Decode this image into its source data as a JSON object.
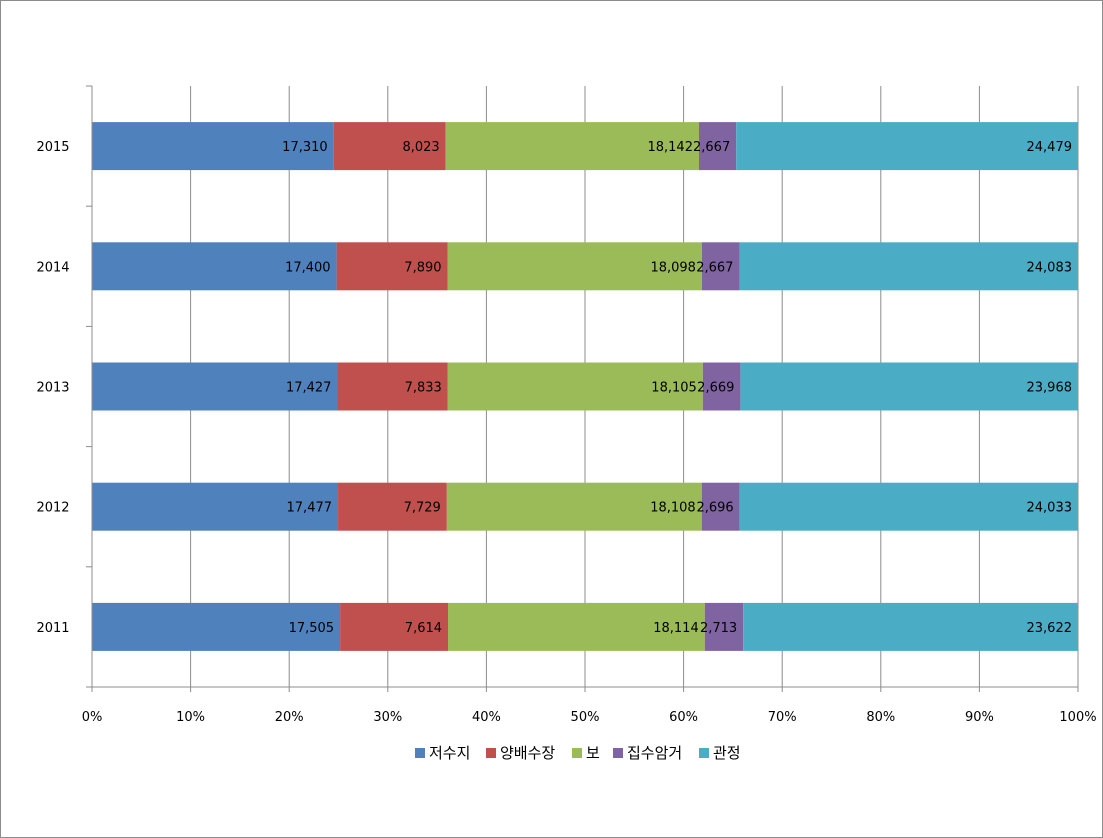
{
  "chart_data": {
    "type": "bar",
    "orientation": "horizontal",
    "stacked": "percent",
    "categories": [
      "2015",
      "2014",
      "2013",
      "2012",
      "2011"
    ],
    "series": [
      {
        "name": "저수지",
        "color": "#4f81bd",
        "values": [
          17310,
          17400,
          17427,
          17477,
          17505
        ],
        "labels": [
          "17,310",
          "17,400",
          "17,427",
          "17,477",
          "17,505"
        ]
      },
      {
        "name": "양배수장",
        "color": "#c0504d",
        "values": [
          8023,
          7890,
          7833,
          7729,
          7614
        ],
        "labels": [
          "8,023",
          "7,890",
          "7,833",
          "7,729",
          "7,614"
        ]
      },
      {
        "name": "보",
        "color": "#9bbb59",
        "values": [
          18142,
          18098,
          18105,
          18108,
          18114
        ],
        "labels": [
          "18,142",
          "18,098",
          "18,105",
          "18,108",
          "18,114"
        ]
      },
      {
        "name": "집수암거",
        "color": "#8064a2",
        "values": [
          2667,
          2667,
          2669,
          2696,
          2713
        ],
        "labels": [
          "2,667",
          "2,667",
          "2,669",
          "2,696",
          "2,713"
        ]
      },
      {
        "name": "관정",
        "color": "#4bacc6",
        "values": [
          24479,
          24083,
          23968,
          24033,
          23622
        ],
        "labels": [
          "24,479",
          "24,083",
          "23,968",
          "24,033",
          "23,622"
        ]
      }
    ],
    "x_ticks": [
      "0%",
      "10%",
      "20%",
      "30%",
      "40%",
      "50%",
      "60%",
      "70%",
      "80%",
      "90%",
      "100%"
    ],
    "xlim": [
      0,
      100
    ],
    "grid": "vertical",
    "legend_position": "bottom",
    "title": "",
    "xlabel": "",
    "ylabel": ""
  }
}
